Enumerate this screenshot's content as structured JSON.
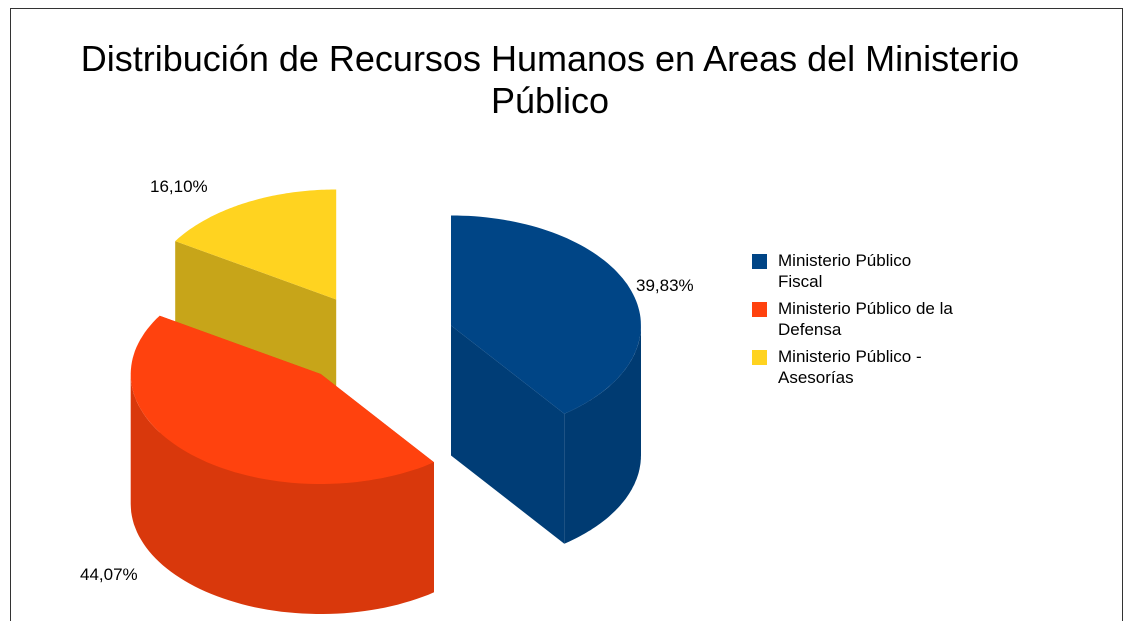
{
  "chart_data": {
    "type": "pie3d",
    "title": "Distribución de Recursos Humanos en Areas del Ministerio Público",
    "categories": [
      "Ministerio Público Fiscal",
      "Ministerio Público de la Defensa",
      "Ministerio Público - Asesorías"
    ],
    "values": [
      39.83,
      44.07,
      16.1
    ],
    "value_labels": [
      "39,83%",
      "44,07%",
      "16,10%"
    ],
    "colors": [
      "#004586",
      "#ff420e",
      "#ffd320"
    ],
    "legend": "right"
  }
}
